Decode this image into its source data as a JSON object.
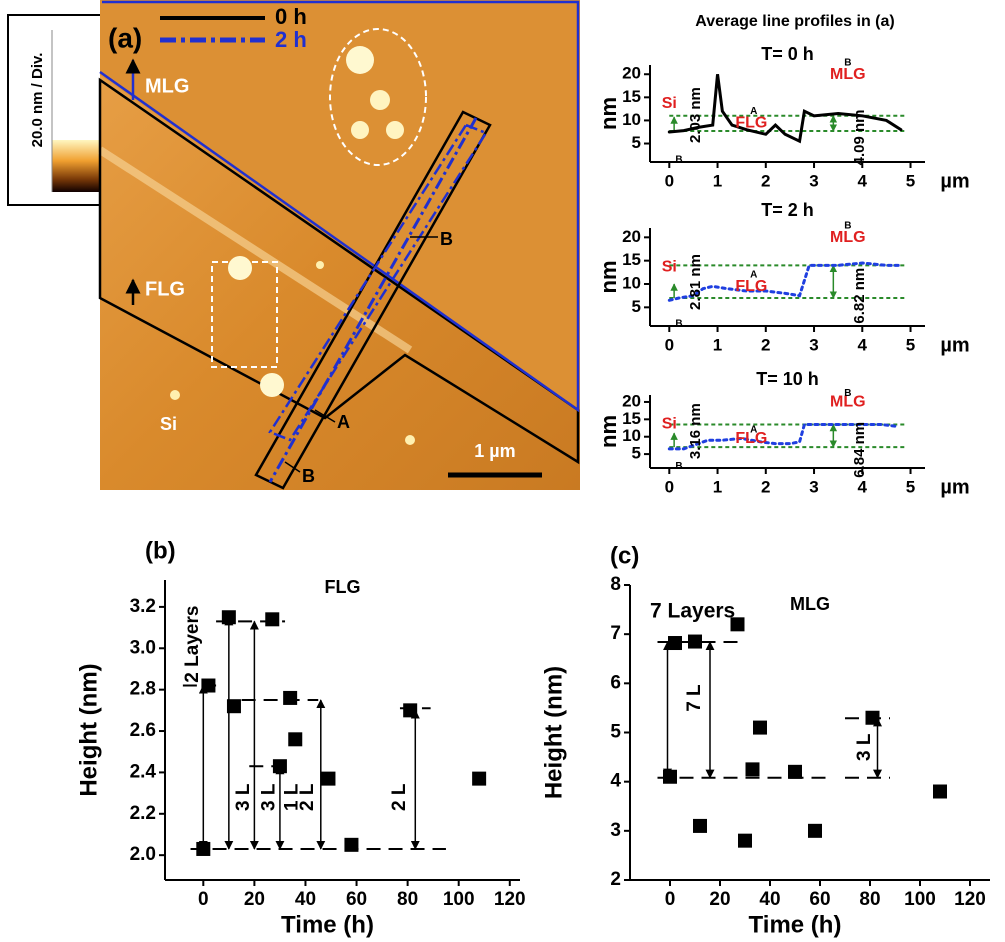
{
  "image_panel": {
    "label": "(a)",
    "legend": [
      "0 h",
      "2 h"
    ],
    "regions": [
      "MLG",
      "FLG",
      "Si"
    ],
    "points": [
      "B",
      "A",
      "B"
    ],
    "scale_bar": "1 µm",
    "colorbar": "20.0 nm / Div."
  },
  "profiles_title": "Average line profiles in (a)",
  "chart_data": [
    {
      "type": "line",
      "title": "T= 0 h",
      "ylabel": "nm",
      "xlabel": "µm",
      "xlim": [
        -0.4,
        5.3
      ],
      "xticks": [
        0,
        1,
        2,
        3,
        4,
        5
      ],
      "ylim": [
        1,
        22
      ],
      "yticks": [
        5,
        10,
        15,
        20
      ],
      "series": [
        {
          "color": "#000000",
          "x": [
            0,
            0.3,
            0.6,
            0.9,
            1.0,
            1.1,
            1.3,
            1.6,
            2.0,
            2.2,
            2.4,
            2.7,
            2.8,
            3.0,
            3.5,
            4.0,
            4.5,
            4.8
          ],
          "values": [
            7.5,
            7.8,
            8.5,
            9,
            20,
            12,
            9,
            8,
            7,
            9,
            7,
            5.5,
            12,
            11,
            11.5,
            11,
            10,
            8
          ]
        }
      ],
      "levels": [
        7.7,
        11
      ],
      "annotations": [
        "Si",
        "FLG",
        "MLG",
        "A",
        "B",
        "B",
        "2.03 nm",
        "4.09 nm"
      ]
    },
    {
      "type": "line",
      "title": "T= 2 h",
      "ylabel": "nm",
      "xlabel": "µm",
      "xlim": [
        -0.4,
        5.3
      ],
      "xticks": [
        0,
        1,
        2,
        3,
        4,
        5
      ],
      "ylim": [
        1,
        22
      ],
      "yticks": [
        5,
        10,
        15,
        20
      ],
      "series": [
        {
          "color": "#1f3fe0",
          "x": [
            0,
            0.2,
            0.5,
            0.7,
            0.9,
            1.2,
            1.6,
            2.0,
            2.4,
            2.7,
            2.9,
            3.1,
            3.5,
            4.0,
            4.5,
            4.8
          ],
          "values": [
            6.5,
            7,
            7.5,
            9,
            9.5,
            9,
            8.5,
            8.5,
            8,
            7.5,
            14,
            14,
            14,
            14.5,
            14,
            14
          ]
        }
      ],
      "levels": [
        7,
        14
      ],
      "annotations": [
        "Si",
        "FLG",
        "MLG",
        "A",
        "B",
        "B",
        "2.81 nm",
        "6.82 nm"
      ]
    },
    {
      "type": "line",
      "title": "T= 10 h",
      "ylabel": "nm",
      "xlabel": "µm",
      "xlim": [
        -0.4,
        5.3
      ],
      "xticks": [
        0,
        1,
        2,
        3,
        4,
        5
      ],
      "ylim": [
        1,
        22
      ],
      "yticks": [
        5,
        10,
        15,
        20
      ],
      "series": [
        {
          "color": "#1f3fe0",
          "x": [
            0,
            0.3,
            0.6,
            0.8,
            1.1,
            1.5,
            1.9,
            2.2,
            2.5,
            2.7,
            2.8,
            3.2,
            3.6,
            4.0,
            4.4,
            4.7
          ],
          "values": [
            6.5,
            6.5,
            8,
            9,
            9,
            9.5,
            8.5,
            8,
            8,
            8.5,
            13.5,
            13.5,
            13.5,
            13.5,
            13.5,
            13
          ]
        }
      ],
      "levels": [
        7,
        13.5
      ],
      "annotations": [
        "Si",
        "FLG",
        "MLG",
        "A",
        "B",
        "B",
        "3.16 nm",
        "6.84 nm"
      ]
    },
    {
      "type": "scatter",
      "label": "(b)",
      "title": "FLG",
      "xlabel": "Time (h)",
      "ylabel": "Height (nm)",
      "xlim": [
        -15,
        124
      ],
      "xticks": [
        0,
        20,
        40,
        60,
        80,
        100,
        120
      ],
      "ylim": [
        1.88,
        3.33
      ],
      "yticks": [
        {
          "value": 2.0,
          "label": "2.0"
        },
        {
          "value": 2.2,
          "label": "2.2"
        },
        {
          "value": 2.4,
          "label": "2.4"
        },
        {
          "value": 2.6,
          "label": "2.6"
        },
        {
          "value": 2.8,
          "label": "2.8"
        },
        {
          "value": 3.0,
          "label": "3.0"
        },
        {
          "value": 3.2,
          "label": "3.2"
        }
      ],
      "x": [
        0,
        2,
        10,
        12,
        27,
        30,
        34,
        36,
        49,
        58,
        81,
        108
      ],
      "values": [
        2.03,
        2.82,
        3.15,
        2.72,
        3.14,
        2.43,
        2.76,
        2.56,
        2.37,
        2.05,
        2.7,
        2.37
      ],
      "color": "#000000",
      "guides": [
        {
          "y": 2.03,
          "x": [
            -5,
            95
          ]
        },
        {
          "y": 2.82,
          "x": [
            -8,
            5
          ]
        },
        {
          "y": 3.13,
          "x": [
            5,
            32
          ]
        },
        {
          "y": 2.75,
          "x": [
            15,
            45
          ]
        },
        {
          "y": 2.43,
          "x": [
            18,
            33
          ]
        },
        {
          "y": 2.71,
          "x": [
            77,
            89
          ]
        }
      ],
      "annotations": [
        "2 Layers",
        "3 L",
        "3 L",
        "1 L",
        "2 L",
        "2 L"
      ]
    },
    {
      "type": "scatter",
      "label": "(c)",
      "title": "MLG",
      "xlabel": "Time (h)",
      "ylabel": "Height (nm)",
      "xlim": [
        -16,
        128
      ],
      "xticks": [
        0,
        20,
        40,
        60,
        80,
        100,
        120
      ],
      "ylim": [
        2,
        8
      ],
      "yticks": [
        2,
        3,
        4,
        5,
        6,
        7,
        8
      ],
      "x": [
        0,
        2,
        10,
        12,
        27,
        30,
        33,
        36,
        50,
        58,
        81,
        108
      ],
      "values": [
        4.1,
        6.82,
        6.85,
        3.1,
        7.2,
        2.8,
        4.25,
        5.1,
        4.2,
        3.0,
        5.3,
        3.8
      ],
      "color": "#000000",
      "guides": [
        {
          "y": 6.84,
          "x": [
            -5,
            28
          ]
        },
        {
          "y": 4.08,
          "x": [
            -5,
            65
          ]
        },
        {
          "y": 5.29,
          "x": [
            70,
            88
          ]
        },
        {
          "y": 4.08,
          "x": [
            70,
            88
          ]
        }
      ],
      "annotations": [
        "7 Layers",
        "7 L",
        "3 L"
      ]
    }
  ]
}
